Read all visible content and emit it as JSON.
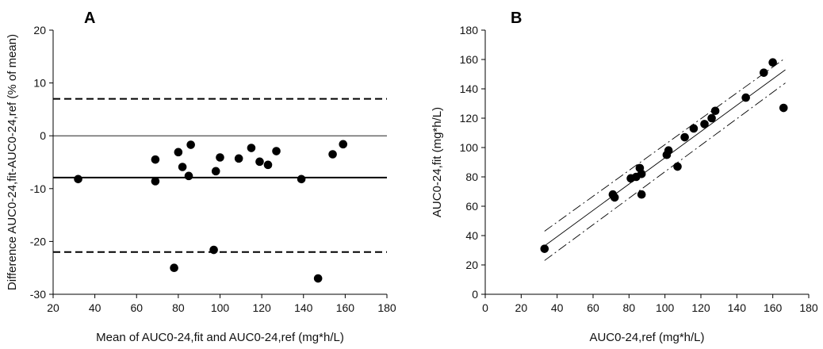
{
  "chart_data": [
    {
      "type": "scatter",
      "panel_label": "A",
      "xlabel": "Mean of AUC0-24,fit and AUC0-24,ref (mg*h/L)",
      "ylabel": "Difference AUC0-24,fit-AUC0-24,ref (% of mean)",
      "xlim": [
        20,
        180
      ],
      "ylim": [
        -30,
        20
      ],
      "xticks": [
        20,
        40,
        60,
        80,
        100,
        120,
        140,
        160,
        180
      ],
      "yticks": [
        -30,
        -20,
        -10,
        0,
        10,
        20
      ],
      "hlines": [
        {
          "y": 7.0,
          "style": "dashed",
          "width": 2
        },
        {
          "y": 0,
          "style": "thin",
          "width": 0.8
        },
        {
          "y": -7.9,
          "style": "solid",
          "width": 2
        },
        {
          "y": -22.0,
          "style": "dashed",
          "width": 2
        }
      ],
      "points": [
        {
          "x": 32,
          "y": -8.2
        },
        {
          "x": 69,
          "y": -4.5
        },
        {
          "x": 69,
          "y": -8.6
        },
        {
          "x": 78,
          "y": -25.0
        },
        {
          "x": 80,
          "y": -3.1
        },
        {
          "x": 82,
          "y": -5.9
        },
        {
          "x": 85,
          "y": -7.6
        },
        {
          "x": 86,
          "y": -1.7
        },
        {
          "x": 97,
          "y": -21.6
        },
        {
          "x": 98,
          "y": -6.7
        },
        {
          "x": 100,
          "y": -4.1
        },
        {
          "x": 109,
          "y": -4.3
        },
        {
          "x": 115,
          "y": -2.3
        },
        {
          "x": 119,
          "y": -4.9
        },
        {
          "x": 123,
          "y": -5.5
        },
        {
          "x": 127,
          "y": -2.9
        },
        {
          "x": 139,
          "y": -8.2
        },
        {
          "x": 147,
          "y": -27.0
        },
        {
          "x": 154,
          "y": -3.5
        },
        {
          "x": 159,
          "y": -1.6
        }
      ]
    },
    {
      "type": "scatter",
      "panel_label": "B",
      "xlabel": "AUC0-24,ref (mg*h/L)",
      "ylabel": "AUC0-24,fit (mg*h/L)",
      "xlim": [
        0,
        180
      ],
      "ylim": [
        0,
        180
      ],
      "xticks": [
        0,
        20,
        40,
        60,
        80,
        100,
        120,
        140,
        160,
        180
      ],
      "yticks": [
        0,
        20,
        40,
        60,
        80,
        100,
        120,
        140,
        160,
        180
      ],
      "lines": [
        {
          "style": "solid",
          "from": [
            33,
            33
          ],
          "to": [
            167,
            153
          ]
        },
        {
          "style": "dashed",
          "from": [
            33,
            43
          ],
          "to": [
            167,
            161
          ]
        },
        {
          "style": "dashed",
          "from": [
            33,
            23
          ],
          "to": [
            167,
            144
          ]
        }
      ],
      "points": [
        {
          "x": 33,
          "y": 31
        },
        {
          "x": 71,
          "y": 68
        },
        {
          "x": 72,
          "y": 66
        },
        {
          "x": 81,
          "y": 79
        },
        {
          "x": 84,
          "y": 80
        },
        {
          "x": 86,
          "y": 86
        },
        {
          "x": 87,
          "y": 82
        },
        {
          "x": 87,
          "y": 68
        },
        {
          "x": 101,
          "y": 95
        },
        {
          "x": 102,
          "y": 98
        },
        {
          "x": 107,
          "y": 87
        },
        {
          "x": 111,
          "y": 107
        },
        {
          "x": 116,
          "y": 113
        },
        {
          "x": 122,
          "y": 116
        },
        {
          "x": 126,
          "y": 120
        },
        {
          "x": 128,
          "y": 125
        },
        {
          "x": 145,
          "y": 134
        },
        {
          "x": 155,
          "y": 151
        },
        {
          "x": 160,
          "y": 158
        },
        {
          "x": 166,
          "y": 127
        }
      ]
    }
  ]
}
